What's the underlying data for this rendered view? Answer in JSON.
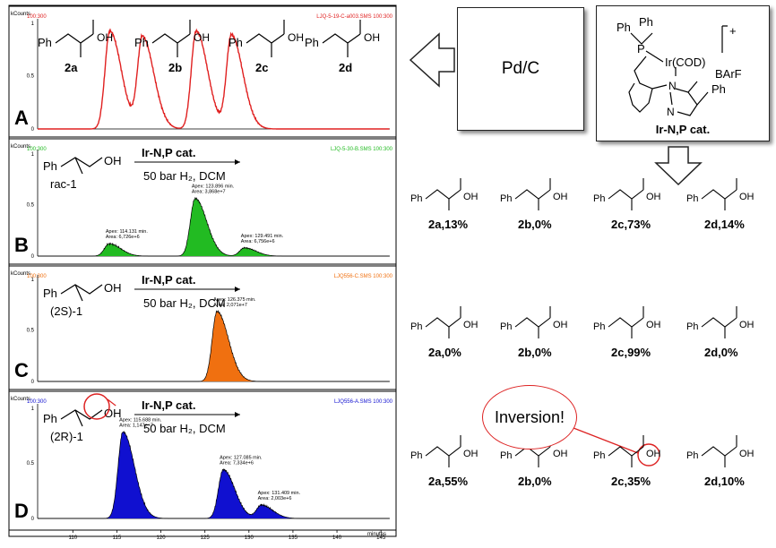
{
  "panels": [
    {
      "letter": "A",
      "header_left": "100:300",
      "header_right": "LJQ-5-19-C-a003.SMS 100:300",
      "color": "#e02020",
      "ytick_top": "1",
      "ytick_mid": "0.5",
      "structures": [
        {
          "label": "2a"
        },
        {
          "label": "2b"
        },
        {
          "label": "2c"
        },
        {
          "label": "2d"
        }
      ]
    },
    {
      "letter": "B",
      "header_left": "100:300",
      "header_right": "LJQ-5-30-B.SMS 100:300",
      "color": "#22bb22",
      "ytick_top": "1",
      "ytick_mid": "0.5",
      "substrate": "rac-1",
      "reagent": "Ir-N,P cat.",
      "conditions": "50 bar H₂, DCM",
      "annotations": [
        {
          "apex": "Apex: 114.131 min.",
          "area": "Area: 6,726e+6"
        },
        {
          "apex": "Apex: 123.896 min.",
          "area": "Area: 3,868e+7"
        },
        {
          "apex": "Apex: 129.491 min.",
          "area": "Area: 6,756e+6"
        }
      ]
    },
    {
      "letter": "C",
      "header_left": "100:300",
      "header_right": "LJQ556-C.SMS 100:300",
      "color": "#f07010",
      "ytick_top": "1",
      "ytick_mid": "0.5",
      "substrate": "(2S)-1",
      "reagent": "Ir-N,P cat.",
      "conditions": "50 bar H₂, DCM",
      "annotations": [
        {
          "apex": "Apex: 126.375 min.",
          "area": "Area: 2,071e+7"
        }
      ]
    },
    {
      "letter": "D",
      "header_left": "100:300",
      "header_right": "LJQ556-A.SMS 100:300",
      "color": "#1010d0",
      "ytick_top": "1",
      "ytick_mid": "0.5",
      "substrate": "(2R)-1",
      "reagent": "Ir-N,P cat.",
      "conditions": "50 bar H₂, DCM",
      "annotations": [
        {
          "apex": "Apex: 115.688 min.",
          "area": "Area: 1,147e+7"
        },
        {
          "apex": "Apex: 127.085 min.",
          "area": "Area: 7,334e+6"
        },
        {
          "apex": "Apex: 131.409 min.",
          "area": "Area: 2,003e+6"
        }
      ]
    }
  ],
  "y_unit": "kCounts",
  "x_axis_label": "minutes",
  "pd_box": {
    "label": "Pd/C"
  },
  "catalyst": {
    "name": "Ir-N,P cat.",
    "charge": "+",
    "cod": "Ir(COD)",
    "counterion": "BArF",
    "ph1": "Ph",
    "ph2": "Ph",
    "ph3": "Ph",
    "p": "P",
    "n1": "N",
    "n2": "N"
  },
  "results": [
    {
      "row": 1,
      "items": [
        {
          "label": "2a,13%"
        },
        {
          "label": "2b,0%"
        },
        {
          "label": "2c,73%"
        },
        {
          "label": "2d,14%"
        }
      ]
    },
    {
      "row": 2,
      "items": [
        {
          "label": "2a,0%"
        },
        {
          "label": "2b,0%"
        },
        {
          "label": "2c,99%"
        },
        {
          "label": "2d,0%"
        }
      ]
    },
    {
      "row": 3,
      "items": [
        {
          "label": "2a,55%"
        },
        {
          "label": "2b,0%"
        },
        {
          "label": "2c,35%"
        },
        {
          "label": "2d,10%"
        }
      ]
    }
  ],
  "inversion_label": "Inversion!",
  "chart_data": {
    "type": "line",
    "xlabel": "minutes",
    "ylabel": "kCounts",
    "xlim": [
      106,
      146
    ],
    "x_ticks": [
      "110",
      "115",
      "120",
      "125",
      "130",
      "135",
      "140",
      "145"
    ],
    "series": [
      {
        "name": "100:300",
        "peaks": [
          {
            "rt": 114.2,
            "height": 0.92
          },
          {
            "rt": 117.9,
            "height": 0.86
          },
          {
            "rt": 124.0,
            "height": 0.92
          },
          {
            "rt": 128.0,
            "height": 0.88
          }
        ]
      },
      {
        "name": "100:300",
        "peaks": [
          {
            "rt": 114.131,
            "height": 0.12
          },
          {
            "rt": 123.896,
            "height": 0.56
          },
          {
            "rt": 129.491,
            "height": 0.08
          }
        ]
      },
      {
        "name": "100:300",
        "peaks": [
          {
            "rt": 126.375,
            "height": 0.68
          }
        ]
      },
      {
        "name": "100:300",
        "peaks": [
          {
            "rt": 115.688,
            "height": 0.78
          },
          {
            "rt": 127.085,
            "height": 0.44
          },
          {
            "rt": 131.409,
            "height": 0.12
          }
        ]
      }
    ]
  }
}
